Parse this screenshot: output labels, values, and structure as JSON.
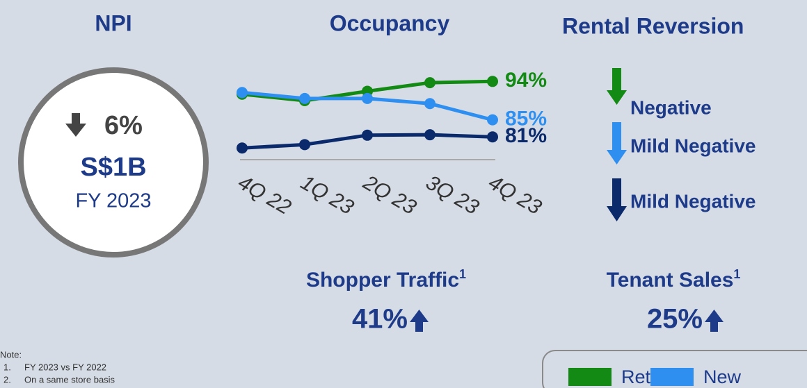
{
  "npi": {
    "title": "NPI",
    "change": "6%",
    "value": "S$1B",
    "period": "FY 2023"
  },
  "chart_data": {
    "type": "line",
    "title": "Occupancy",
    "categories": [
      "4Q 22",
      "1Q 23",
      "2Q 23",
      "3Q 23",
      "4Q 23"
    ],
    "ylim": [
      76,
      96
    ],
    "series": [
      {
        "name": "Retail",
        "color": "#138a13",
        "values": [
          91,
          89.5,
          91.7,
          93.7,
          94
        ],
        "value_labels": [
          null,
          null,
          null,
          null,
          "94%"
        ]
      },
      {
        "name": "New",
        "color": "#2e8ff0",
        "values": [
          91.4,
          90,
          90,
          88.8,
          85
        ],
        "value_labels": [
          null,
          null,
          null,
          null,
          "85%"
        ]
      },
      {
        "color": "#0b2a6b",
        "values": [
          78.4,
          79.2,
          81.4,
          81.5,
          81
        ],
        "value_labels": [
          null,
          null,
          null,
          null,
          "81%"
        ]
      }
    ]
  },
  "rental_reversion": {
    "title": "Rental Reversion",
    "items": [
      "Negative",
      "Mild Negative",
      "Mild Negative"
    ]
  },
  "shopper_traffic": {
    "title": "Shopper Traffic",
    "note": "1",
    "value": "41%"
  },
  "tenant_sales": {
    "title": "Tenant Sales",
    "note": "1",
    "value": "25%"
  },
  "notes": {
    "heading": "Note:",
    "items": [
      {
        "number": "1.",
        "text": "FY 2023 vs FY 2022"
      },
      {
        "number": "2.",
        "text": "On a same store basis"
      }
    ]
  }
}
